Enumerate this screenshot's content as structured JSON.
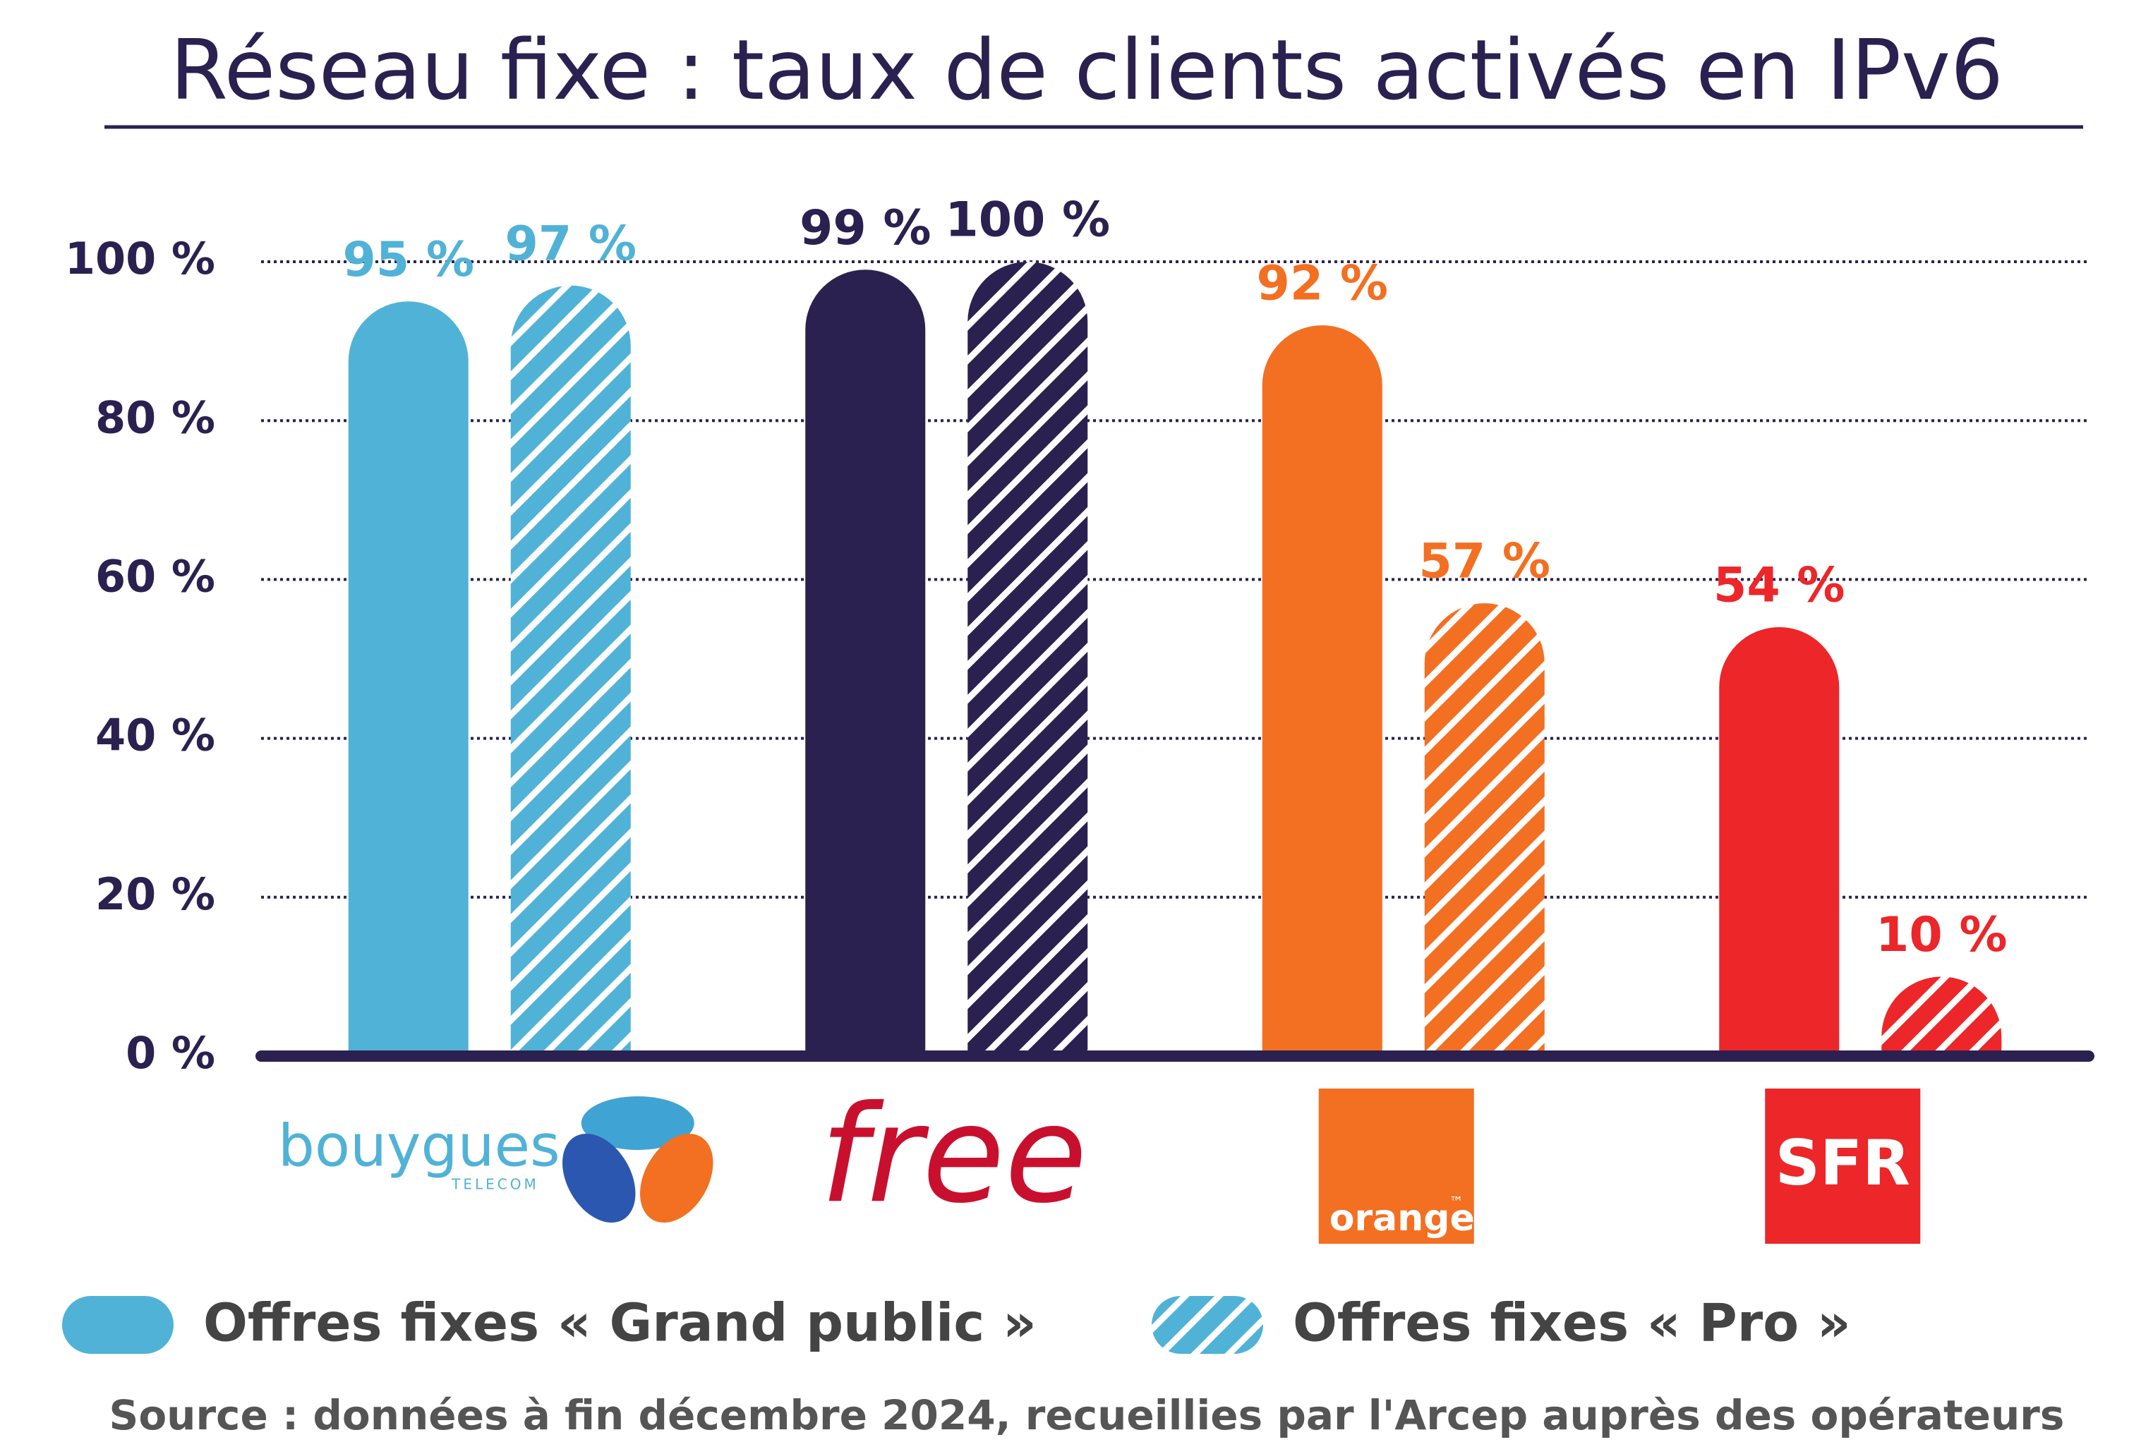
{
  "chart_data": {
    "type": "bar",
    "title": "Réseau fixe : taux de clients activés en IPv6",
    "categories": [
      "bouygues",
      "free",
      "orange",
      "SFR"
    ],
    "bouygues_tagline": "TELECOM",
    "orange_mark": "™",
    "category_colors": [
      "#50b2d6",
      "#2a2150",
      "#f36f21",
      "#ec2629"
    ],
    "series": [
      {
        "name": "Offres fixes « Grand public »",
        "color": "#50b2d6",
        "hatched": false,
        "values": [
          95,
          99,
          92,
          54
        ],
        "value_labels": [
          "95 %",
          "99 %",
          "92 %",
          "54 %"
        ]
      },
      {
        "name": "Offres fixes « Pro »",
        "color": "#50b2d6",
        "hatched": true,
        "values": [
          97,
          100,
          57,
          10
        ],
        "value_labels": [
          "97 %",
          "100 %",
          "57 %",
          "10 %"
        ]
      }
    ],
    "ylim": [
      0,
      100
    ],
    "yticks": [
      {
        "value": 0,
        "label": "0 %"
      },
      {
        "value": 20,
        "label": "20 %"
      },
      {
        "value": 40,
        "label": "40 %"
      },
      {
        "value": 60,
        "label": "60 %"
      },
      {
        "value": 80,
        "label": "80 %"
      },
      {
        "value": 100,
        "label": "100 %"
      }
    ],
    "grid": true,
    "source": "Source : données à fin décembre 2024, recueillies par l'Arcep auprès des opérateurs"
  }
}
